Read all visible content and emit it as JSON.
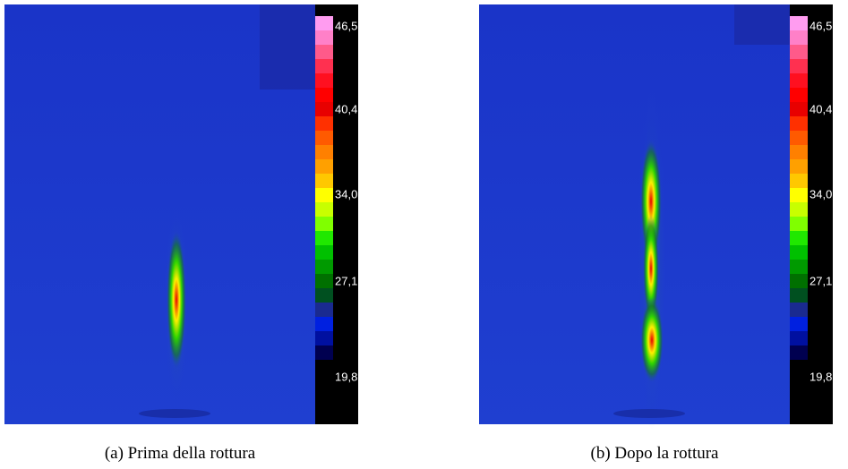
{
  "panels": [
    {
      "caption": "(a) Prima della rottura",
      "scale_labels": [
        "46,5",
        "40,4",
        "34,0°C",
        "27,1",
        "19,8"
      ]
    },
    {
      "caption": "(b) Dopo la rottura",
      "scale_labels": [
        "46,5",
        "40,4",
        "34,0°C",
        "27,1",
        "19,8"
      ]
    }
  ]
}
